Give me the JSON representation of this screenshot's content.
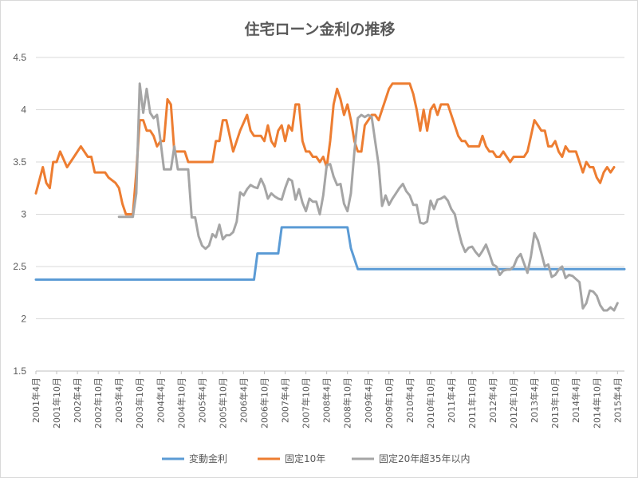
{
  "chart_data": {
    "type": "line",
    "title": "住宅ローン金利の推移",
    "ylim": [
      1.5,
      4.5
    ],
    "yticks": [
      "1.5",
      "2",
      "2.5",
      "3",
      "3.5",
      "4",
      "4.5"
    ],
    "x_start": "2001-04",
    "x_end": "2015-06",
    "x_ticks": [
      "2001年4月",
      "2001年10月",
      "2002年4月",
      "2002年10月",
      "2003年4月",
      "2003年10月",
      "2004年4月",
      "2004年10月",
      "2005年4月",
      "2005年10月",
      "2006年4月",
      "2006年10月",
      "2007年4月",
      "2007年10月",
      "2008年4月",
      "2008年10月",
      "2009年4月",
      "2009年10月",
      "2010年4月",
      "2010年10月",
      "2011年4月",
      "2011年10月",
      "2012年4月",
      "2012年10月",
      "2013年4月",
      "2013年10月",
      "2014年4月",
      "2014年10月",
      "2015年4月"
    ],
    "grid": true,
    "legend": "bottom",
    "series": [
      {
        "name": "変動金利",
        "color": "#5b9bd5",
        "points": [
          [
            "2001-04",
            2.375
          ],
          [
            "2006-07",
            2.375
          ],
          [
            "2006-08",
            2.625
          ],
          [
            "2007-02",
            2.625
          ],
          [
            "2007-03",
            2.875
          ],
          [
            "2008-10",
            2.875
          ],
          [
            "2008-11",
            2.675
          ],
          [
            "2009-01",
            2.475
          ],
          [
            "2015-06",
            2.475
          ]
        ]
      },
      {
        "name": "固定10年",
        "color": "#ed7d31",
        "points": [
          [
            "2001-04",
            3.2
          ],
          [
            "2001-06",
            3.45
          ],
          [
            "2001-07",
            3.3
          ],
          [
            "2001-08",
            3.25
          ],
          [
            "2001-09",
            3.5
          ],
          [
            "2001-10",
            3.5
          ],
          [
            "2001-11",
            3.6
          ],
          [
            "2002-01",
            3.45
          ],
          [
            "2002-03",
            3.55
          ],
          [
            "2002-05",
            3.65
          ],
          [
            "2002-07",
            3.55
          ],
          [
            "2002-08",
            3.55
          ],
          [
            "2002-09",
            3.4
          ],
          [
            "2002-12",
            3.4
          ],
          [
            "2003-01",
            3.35
          ],
          [
            "2003-03",
            3.3
          ],
          [
            "2003-04",
            3.25
          ],
          [
            "2003-05",
            3.1
          ],
          [
            "2003-06",
            3.0
          ],
          [
            "2003-08",
            3.0
          ],
          [
            "2003-09",
            3.4
          ],
          [
            "2003-10",
            3.9
          ],
          [
            "2003-11",
            3.9
          ],
          [
            "2003-12",
            3.8
          ],
          [
            "2004-01",
            3.8
          ],
          [
            "2004-02",
            3.75
          ],
          [
            "2004-03",
            3.65
          ],
          [
            "2004-04",
            3.7
          ],
          [
            "2004-05",
            3.7
          ],
          [
            "2004-06",
            4.1
          ],
          [
            "2004-07",
            4.05
          ],
          [
            "2004-08",
            3.6
          ],
          [
            "2004-11",
            3.6
          ],
          [
            "2004-12",
            3.5
          ],
          [
            "2005-07",
            3.5
          ],
          [
            "2005-08",
            3.7
          ],
          [
            "2005-09",
            3.7
          ],
          [
            "2005-10",
            3.9
          ],
          [
            "2005-11",
            3.9
          ],
          [
            "2005-12",
            3.75
          ],
          [
            "2006-01",
            3.6
          ],
          [
            "2006-03",
            3.8
          ],
          [
            "2006-05",
            3.95
          ],
          [
            "2006-06",
            3.8
          ],
          [
            "2006-07",
            3.75
          ],
          [
            "2006-09",
            3.75
          ],
          [
            "2006-10",
            3.7
          ],
          [
            "2006-11",
            3.85
          ],
          [
            "2006-12",
            3.7
          ],
          [
            "2007-01",
            3.65
          ],
          [
            "2007-02",
            3.8
          ],
          [
            "2007-03",
            3.85
          ],
          [
            "2007-04",
            3.7
          ],
          [
            "2007-05",
            3.85
          ],
          [
            "2007-06",
            3.8
          ],
          [
            "2007-07",
            4.05
          ],
          [
            "2007-08",
            4.05
          ],
          [
            "2007-09",
            3.7
          ],
          [
            "2007-10",
            3.6
          ],
          [
            "2007-11",
            3.6
          ],
          [
            "2007-12",
            3.55
          ],
          [
            "2008-01",
            3.55
          ],
          [
            "2008-02",
            3.5
          ],
          [
            "2008-03",
            3.55
          ],
          [
            "2008-04",
            3.45
          ],
          [
            "2008-05",
            3.7
          ],
          [
            "2008-06",
            4.05
          ],
          [
            "2008-07",
            4.2
          ],
          [
            "2008-08",
            4.1
          ],
          [
            "2008-09",
            3.95
          ],
          [
            "2008-10",
            4.05
          ],
          [
            "2008-11",
            3.9
          ],
          [
            "2008-12",
            3.7
          ],
          [
            "2009-01",
            3.6
          ],
          [
            "2009-02",
            3.6
          ],
          [
            "2009-03",
            3.85
          ],
          [
            "2009-04",
            3.9
          ],
          [
            "2009-05",
            3.95
          ],
          [
            "2009-06",
            3.95
          ],
          [
            "2009-07",
            3.9
          ],
          [
            "2009-08",
            4.0
          ],
          [
            "2009-09",
            4.1
          ],
          [
            "2009-10",
            4.2
          ],
          [
            "2009-11",
            4.25
          ],
          [
            "2010-04",
            4.25
          ],
          [
            "2010-05",
            4.15
          ],
          [
            "2010-06",
            4.0
          ],
          [
            "2010-07",
            3.8
          ],
          [
            "2010-08",
            4.0
          ],
          [
            "2010-09",
            3.8
          ],
          [
            "2010-10",
            4.0
          ],
          [
            "2010-11",
            4.05
          ],
          [
            "2010-12",
            3.95
          ],
          [
            "2011-01",
            4.05
          ],
          [
            "2011-03",
            4.05
          ],
          [
            "2011-04",
            3.95
          ],
          [
            "2011-05",
            3.85
          ],
          [
            "2011-06",
            3.75
          ],
          [
            "2011-07",
            3.7
          ],
          [
            "2011-08",
            3.7
          ],
          [
            "2011-09",
            3.65
          ],
          [
            "2011-12",
            3.65
          ],
          [
            "2012-01",
            3.75
          ],
          [
            "2012-02",
            3.65
          ],
          [
            "2012-03",
            3.6
          ],
          [
            "2012-04",
            3.6
          ],
          [
            "2012-05",
            3.55
          ],
          [
            "2012-06",
            3.55
          ],
          [
            "2012-07",
            3.6
          ],
          [
            "2012-08",
            3.55
          ],
          [
            "2012-09",
            3.5
          ],
          [
            "2012-10",
            3.55
          ],
          [
            "2013-01",
            3.55
          ],
          [
            "2013-02",
            3.6
          ],
          [
            "2013-03",
            3.75
          ],
          [
            "2013-04",
            3.9
          ],
          [
            "2013-05",
            3.85
          ],
          [
            "2013-06",
            3.8
          ],
          [
            "2013-07",
            3.8
          ],
          [
            "2013-08",
            3.65
          ],
          [
            "2013-09",
            3.65
          ],
          [
            "2013-10",
            3.7
          ],
          [
            "2013-11",
            3.6
          ],
          [
            "2013-12",
            3.55
          ],
          [
            "2014-01",
            3.65
          ],
          [
            "2014-02",
            3.6
          ],
          [
            "2014-04",
            3.6
          ],
          [
            "2014-05",
            3.5
          ],
          [
            "2014-06",
            3.4
          ],
          [
            "2014-07",
            3.5
          ],
          [
            "2014-08",
            3.45
          ],
          [
            "2014-09",
            3.45
          ],
          [
            "2014-10",
            3.35
          ],
          [
            "2014-11",
            3.3
          ],
          [
            "2014-12",
            3.4
          ],
          [
            "2015-01",
            3.45
          ],
          [
            "2015-02",
            3.4
          ],
          [
            "2015-03",
            3.45
          ]
        ]
      },
      {
        "name": "固定20年超35年以内",
        "color": "#a5a5a5",
        "points": [
          [
            "2003-04",
            2.975
          ],
          [
            "2003-08",
            2.975
          ],
          [
            "2003-09",
            3.2
          ],
          [
            "2003-10",
            4.25
          ],
          [
            "2003-11",
            3.97
          ],
          [
            "2003-12",
            4.2
          ],
          [
            "2004-01",
            3.97
          ],
          [
            "2004-02",
            3.92
          ],
          [
            "2004-03",
            3.95
          ],
          [
            "2004-04",
            3.7
          ],
          [
            "2004-05",
            3.43
          ],
          [
            "2004-07",
            3.43
          ],
          [
            "2004-08",
            3.65
          ],
          [
            "2004-09",
            3.43
          ],
          [
            "2004-12",
            3.43
          ],
          [
            "2005-01",
            2.97
          ],
          [
            "2005-02",
            2.97
          ],
          [
            "2005-03",
            2.79
          ],
          [
            "2005-04",
            2.7
          ],
          [
            "2005-05",
            2.67
          ],
          [
            "2005-06",
            2.7
          ],
          [
            "2005-07",
            2.81
          ],
          [
            "2005-08",
            2.78
          ],
          [
            "2005-09",
            2.9
          ],
          [
            "2005-10",
            2.76
          ],
          [
            "2005-11",
            2.8
          ],
          [
            "2005-12",
            2.8
          ],
          [
            "2006-01",
            2.83
          ],
          [
            "2006-02",
            2.93
          ],
          [
            "2006-03",
            3.21
          ],
          [
            "2006-04",
            3.18
          ],
          [
            "2006-05",
            3.24
          ],
          [
            "2006-06",
            3.28
          ],
          [
            "2006-07",
            3.26
          ],
          [
            "2006-08",
            3.25
          ],
          [
            "2006-09",
            3.34
          ],
          [
            "2006-10",
            3.27
          ],
          [
            "2006-11",
            3.15
          ],
          [
            "2006-12",
            3.2
          ],
          [
            "2007-01",
            3.17
          ],
          [
            "2007-02",
            3.15
          ],
          [
            "2007-03",
            3.14
          ],
          [
            "2007-04",
            3.25
          ],
          [
            "2007-05",
            3.34
          ],
          [
            "2007-06",
            3.32
          ],
          [
            "2007-07",
            3.14
          ],
          [
            "2007-08",
            3.24
          ],
          [
            "2007-09",
            3.11
          ],
          [
            "2007-10",
            3.03
          ],
          [
            "2007-11",
            3.15
          ],
          [
            "2007-12",
            3.12
          ],
          [
            "2008-01",
            3.12
          ],
          [
            "2008-02",
            3.0
          ],
          [
            "2008-03",
            3.18
          ],
          [
            "2008-04",
            3.47
          ],
          [
            "2008-05",
            3.48
          ],
          [
            "2008-06",
            3.36
          ],
          [
            "2008-07",
            3.28
          ],
          [
            "2008-08",
            3.29
          ],
          [
            "2008-09",
            3.1
          ],
          [
            "2008-10",
            3.03
          ],
          [
            "2008-11",
            3.2
          ],
          [
            "2008-12",
            3.6
          ],
          [
            "2009-01",
            3.92
          ],
          [
            "2009-02",
            3.95
          ],
          [
            "2009-03",
            3.93
          ],
          [
            "2009-04",
            3.95
          ],
          [
            "2009-05",
            3.93
          ],
          [
            "2009-06",
            3.7
          ],
          [
            "2009-07",
            3.47
          ],
          [
            "2009-08",
            3.08
          ],
          [
            "2009-09",
            3.18
          ],
          [
            "2009-10",
            3.09
          ],
          [
            "2009-11",
            3.15
          ],
          [
            "2009-12",
            3.2
          ],
          [
            "2010-01",
            3.25
          ],
          [
            "2010-02",
            3.29
          ],
          [
            "2010-03",
            3.22
          ],
          [
            "2010-04",
            3.18
          ],
          [
            "2010-05",
            3.09
          ],
          [
            "2010-06",
            3.09
          ],
          [
            "2010-07",
            2.92
          ],
          [
            "2010-08",
            2.91
          ],
          [
            "2010-09",
            2.93
          ],
          [
            "2010-10",
            3.13
          ],
          [
            "2010-11",
            3.05
          ],
          [
            "2010-12",
            3.14
          ],
          [
            "2011-01",
            3.15
          ],
          [
            "2011-02",
            3.17
          ],
          [
            "2011-03",
            3.13
          ],
          [
            "2011-04",
            3.05
          ],
          [
            "2011-05",
            3.0
          ],
          [
            "2011-06",
            2.85
          ],
          [
            "2011-07",
            2.72
          ],
          [
            "2011-08",
            2.64
          ],
          [
            "2011-09",
            2.68
          ],
          [
            "2011-10",
            2.69
          ],
          [
            "2011-11",
            2.64
          ],
          [
            "2011-12",
            2.6
          ],
          [
            "2012-01",
            2.65
          ],
          [
            "2012-02",
            2.71
          ],
          [
            "2012-03",
            2.62
          ],
          [
            "2012-04",
            2.52
          ],
          [
            "2012-05",
            2.5
          ],
          [
            "2012-06",
            2.42
          ],
          [
            "2012-07",
            2.46
          ],
          [
            "2012-08",
            2.47
          ],
          [
            "2012-09",
            2.47
          ],
          [
            "2012-10",
            2.5
          ],
          [
            "2012-11",
            2.58
          ],
          [
            "2012-12",
            2.62
          ],
          [
            "2013-01",
            2.53
          ],
          [
            "2013-02",
            2.44
          ],
          [
            "2013-03",
            2.6
          ],
          [
            "2013-04",
            2.82
          ],
          [
            "2013-05",
            2.75
          ],
          [
            "2013-06",
            2.63
          ],
          [
            "2013-07",
            2.5
          ],
          [
            "2013-08",
            2.52
          ],
          [
            "2013-09",
            2.4
          ],
          [
            "2013-10",
            2.42
          ],
          [
            "2013-11",
            2.47
          ],
          [
            "2013-12",
            2.5
          ],
          [
            "2014-01",
            2.39
          ],
          [
            "2014-02",
            2.42
          ],
          [
            "2014-03",
            2.41
          ],
          [
            "2014-04",
            2.38
          ],
          [
            "2014-05",
            2.35
          ],
          [
            "2014-06",
            2.1
          ],
          [
            "2014-07",
            2.15
          ],
          [
            "2014-08",
            2.27
          ],
          [
            "2014-09",
            2.26
          ],
          [
            "2014-10",
            2.22
          ],
          [
            "2014-11",
            2.13
          ],
          [
            "2014-12",
            2.08
          ],
          [
            "2015-01",
            2.08
          ],
          [
            "2015-02",
            2.11
          ],
          [
            "2015-03",
            2.08
          ],
          [
            "2015-04",
            2.15
          ]
        ]
      }
    ]
  }
}
